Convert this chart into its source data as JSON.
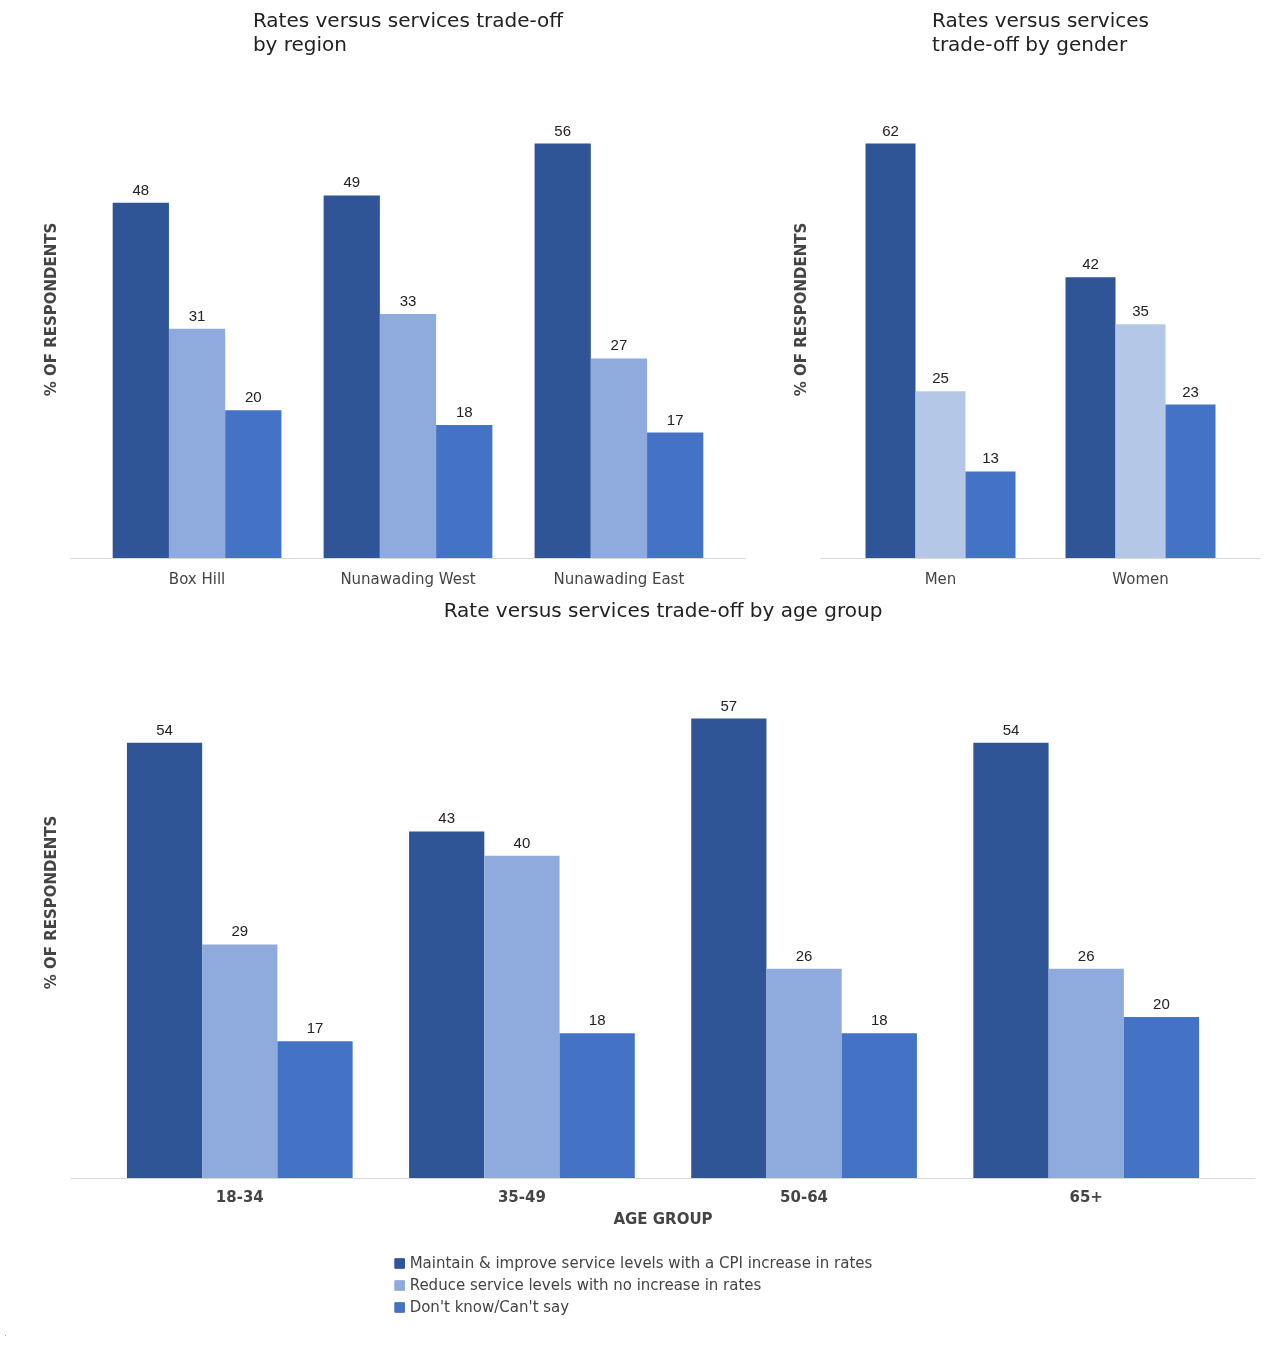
{
  "chart_data": [
    {
      "type": "bar",
      "title": "Rates versus services trade-off by region",
      "ylabel": "% OF RESPONDENTS",
      "categories": [
        "Box Hill",
        "Nunawading West",
        "Nunawading East"
      ],
      "series": [
        {
          "color": "#2f5597",
          "values": [
            48,
            49,
            56
          ]
        },
        {
          "color": "#8faadc",
          "values": [
            31,
            33,
            27
          ]
        },
        {
          "color": "#4472c4",
          "values": [
            20,
            18,
            17
          ]
        }
      ],
      "data_labels": true,
      "grid": false,
      "tick_labels": "x"
    },
    {
      "type": "bar",
      "title": "Rates versus services trade-off by gender",
      "ylabel": "% OF RESPONDENTS",
      "categories": [
        "Men",
        "Women"
      ],
      "series": [
        {
          "color": "#2f5597",
          "values": [
            62,
            42
          ]
        },
        {
          "color": "#b4c7e7",
          "values": [
            25,
            35
          ]
        },
        {
          "color": "#4472c4",
          "values": [
            13,
            23
          ]
        }
      ],
      "data_labels": true,
      "grid": false,
      "tick_labels": "x"
    },
    {
      "type": "bar",
      "title": "Rate versus services trade-off by age group",
      "ylabel": "% OF RESPONDENTS",
      "xlabel": "AGE GROUP",
      "categories": [
        "18-34",
        "35-49",
        "50-64",
        "65+"
      ],
      "series": [
        {
          "name": "Maintain & improve service levels with a CPI increase in rates",
          "color": "#2f5597",
          "values": [
            54,
            43,
            57,
            54
          ]
        },
        {
          "name": "Reduce service levels with no increase in rates",
          "color": "#8faadc",
          "values": [
            29,
            40,
            26,
            26
          ]
        },
        {
          "name": "Don't know/Can't say",
          "color": "#4472c4",
          "values": [
            17,
            18,
            18,
            20
          ]
        }
      ],
      "data_labels": true,
      "grid": false,
      "legend": "bottom",
      "tick_labels": "x"
    }
  ]
}
